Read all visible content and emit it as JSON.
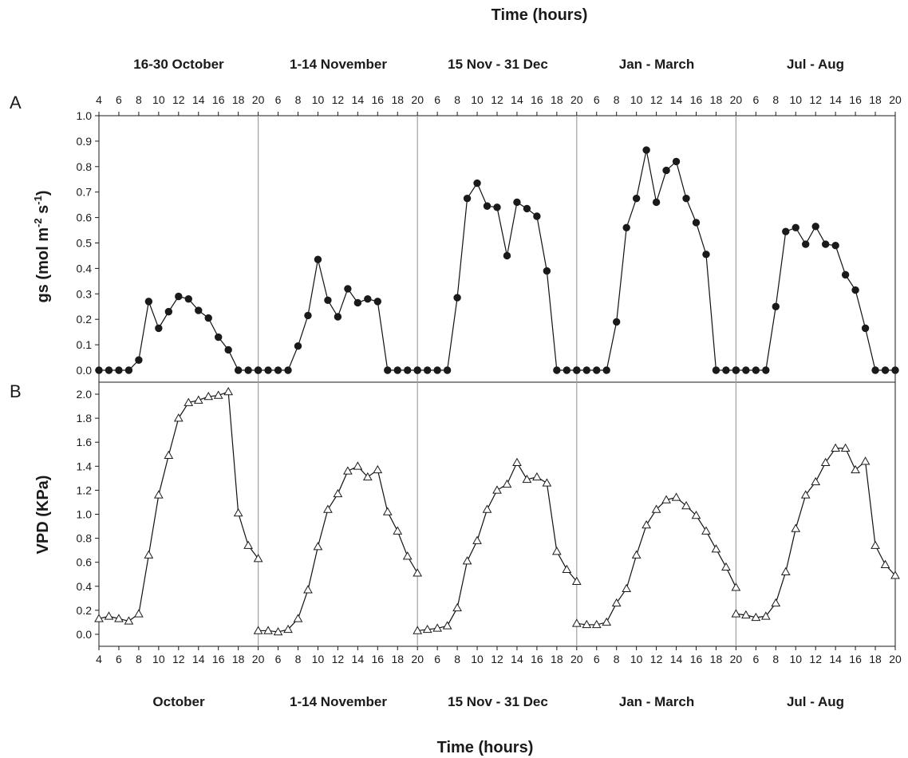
{
  "chart_data": {
    "type": "line",
    "top_title": "Time (hours)",
    "bottom_title": "Time (hours)",
    "top_periods": [
      "16-30 October",
      "1-14 November",
      "15 Nov - 31 Dec",
      "Jan - March",
      "Jul - Aug"
    ],
    "bottom_periods": [
      "October",
      "1-14 November",
      "15 Nov - 31 Dec",
      "Jan - March",
      "Jul - Aug"
    ],
    "hour_ticks": [
      "4",
      "6",
      "8",
      "10",
      "12",
      "14",
      "16",
      "18",
      "20",
      "6",
      "8",
      "10",
      "12",
      "14",
      "16",
      "18",
      "20",
      "6",
      "8",
      "10",
      "12",
      "14",
      "16",
      "18",
      "20",
      "6",
      "8",
      "10",
      "12",
      "14",
      "16",
      "18",
      "20",
      "6",
      "8",
      "10",
      "12",
      "14",
      "16",
      "18",
      "20"
    ],
    "panel_a": {
      "letter": "A",
      "ylabel_main": "gs (mol m",
      "ylabel_sup1": "-2",
      "ylabel_mid": " s",
      "ylabel_sup2": "-1",
      "ylabel_end": ")",
      "ylim": [
        0,
        1.0
      ],
      "yticks": [
        "0.0",
        "0.1",
        "0.2",
        "0.3",
        "0.4",
        "0.5",
        "0.6",
        "0.7",
        "0.8",
        "0.9",
        "1.0"
      ],
      "marker": "filled-circle",
      "series": [
        {
          "period": "16-30 October",
          "x": [
            4,
            5,
            6,
            7,
            8,
            9,
            10,
            11,
            12,
            13,
            14,
            15,
            16,
            17,
            18,
            19,
            20
          ],
          "y": [
            0,
            0,
            0,
            0,
            0.04,
            0.27,
            0.165,
            0.23,
            0.29,
            0.28,
            0.235,
            0.205,
            0.13,
            0.08,
            0,
            0,
            0
          ]
        },
        {
          "period": "1-14 November",
          "x": [
            4,
            5,
            6,
            7,
            8,
            9,
            10,
            11,
            12,
            13,
            14,
            15,
            16,
            17,
            18,
            19,
            20
          ],
          "y": [
            0,
            0,
            0,
            0,
            0.095,
            0.215,
            0.435,
            0.275,
            0.21,
            0.32,
            0.265,
            0.28,
            0.27,
            0,
            0,
            0,
            0
          ]
        },
        {
          "period": "15 Nov - 31 Dec",
          "x": [
            4,
            5,
            6,
            7,
            8,
            9,
            10,
            11,
            12,
            13,
            14,
            15,
            16,
            17,
            18,
            19,
            20
          ],
          "y": [
            0,
            0,
            0,
            0,
            0.285,
            0.675,
            0.735,
            0.645,
            0.64,
            0.45,
            0.66,
            0.635,
            0.605,
            0.39,
            0,
            0,
            0
          ]
        },
        {
          "period": "Jan - March",
          "x": [
            4,
            5,
            6,
            7,
            8,
            9,
            10,
            11,
            12,
            13,
            14,
            15,
            16,
            17,
            18,
            19,
            20
          ],
          "y": [
            0,
            0,
            0,
            0,
            0.19,
            0.56,
            0.675,
            0.865,
            0.66,
            0.785,
            0.82,
            0.675,
            0.58,
            0.455,
            0,
            0,
            0
          ]
        },
        {
          "period": "Jul - Aug",
          "x": [
            4,
            5,
            6,
            7,
            8,
            9,
            10,
            11,
            12,
            13,
            14,
            15,
            16,
            17,
            18,
            19,
            20
          ],
          "y": [
            0,
            0,
            0,
            0,
            0.25,
            0.545,
            0.56,
            0.495,
            0.565,
            0.495,
            0.49,
            0.375,
            0.315,
            0.165,
            0,
            0,
            0
          ]
        }
      ]
    },
    "panel_b": {
      "letter": "B",
      "ylabel": "VPD (KPa)",
      "ylim": [
        -0.1,
        2.1
      ],
      "yticks": [
        "0.0",
        "0.2",
        "0.4",
        "0.6",
        "0.8",
        "1.0",
        "1.2",
        "1.4",
        "1.6",
        "1.8",
        "2.0"
      ],
      "marker": "open-triangle",
      "series": [
        {
          "period": "October",
          "x": [
            4,
            5,
            6,
            7,
            8,
            9,
            10,
            11,
            12,
            13,
            14,
            15,
            16,
            17,
            18,
            19,
            20
          ],
          "y": [
            0.13,
            0.15,
            0.13,
            0.11,
            0.17,
            0.66,
            1.16,
            1.49,
            1.8,
            1.93,
            1.95,
            1.98,
            1.99,
            2.02,
            1.01,
            0.74,
            0.63
          ]
        },
        {
          "period": "1-14 November",
          "x": [
            4,
            5,
            6,
            7,
            8,
            9,
            10,
            11,
            12,
            13,
            14,
            15,
            16,
            17,
            18,
            19,
            20
          ],
          "y": [
            0.03,
            0.03,
            0.02,
            0.04,
            0.13,
            0.37,
            0.73,
            1.04,
            1.17,
            1.36,
            1.4,
            1.31,
            1.37,
            1.02,
            0.86,
            0.65,
            0.51
          ]
        },
        {
          "period": "15 Nov - 31 Dec",
          "x": [
            4,
            5,
            6,
            7,
            8,
            9,
            10,
            11,
            12,
            13,
            14,
            15,
            16,
            17,
            18,
            19,
            20
          ],
          "y": [
            0.03,
            0.04,
            0.05,
            0.07,
            0.22,
            0.61,
            0.78,
            1.04,
            1.2,
            1.25,
            1.43,
            1.29,
            1.31,
            1.26,
            0.69,
            0.54,
            0.44
          ]
        },
        {
          "period": "Jan - March",
          "x": [
            4,
            5,
            6,
            7,
            8,
            9,
            10,
            11,
            12,
            13,
            14,
            15,
            16,
            17,
            18,
            19,
            20
          ],
          "y": [
            0.09,
            0.08,
            0.08,
            0.1,
            0.26,
            0.38,
            0.66,
            0.91,
            1.04,
            1.12,
            1.14,
            1.07,
            0.99,
            0.86,
            0.71,
            0.56,
            0.39
          ]
        },
        {
          "period": "Jul - Aug",
          "x": [
            4,
            5,
            6,
            7,
            8,
            9,
            10,
            11,
            12,
            13,
            14,
            15,
            16,
            17,
            18,
            19,
            20
          ],
          "y": [
            0.17,
            0.16,
            0.14,
            0.15,
            0.26,
            0.52,
            0.88,
            1.16,
            1.27,
            1.43,
            1.55,
            1.55,
            1.37,
            1.44,
            0.74,
            0.58,
            0.49
          ]
        }
      ]
    }
  }
}
